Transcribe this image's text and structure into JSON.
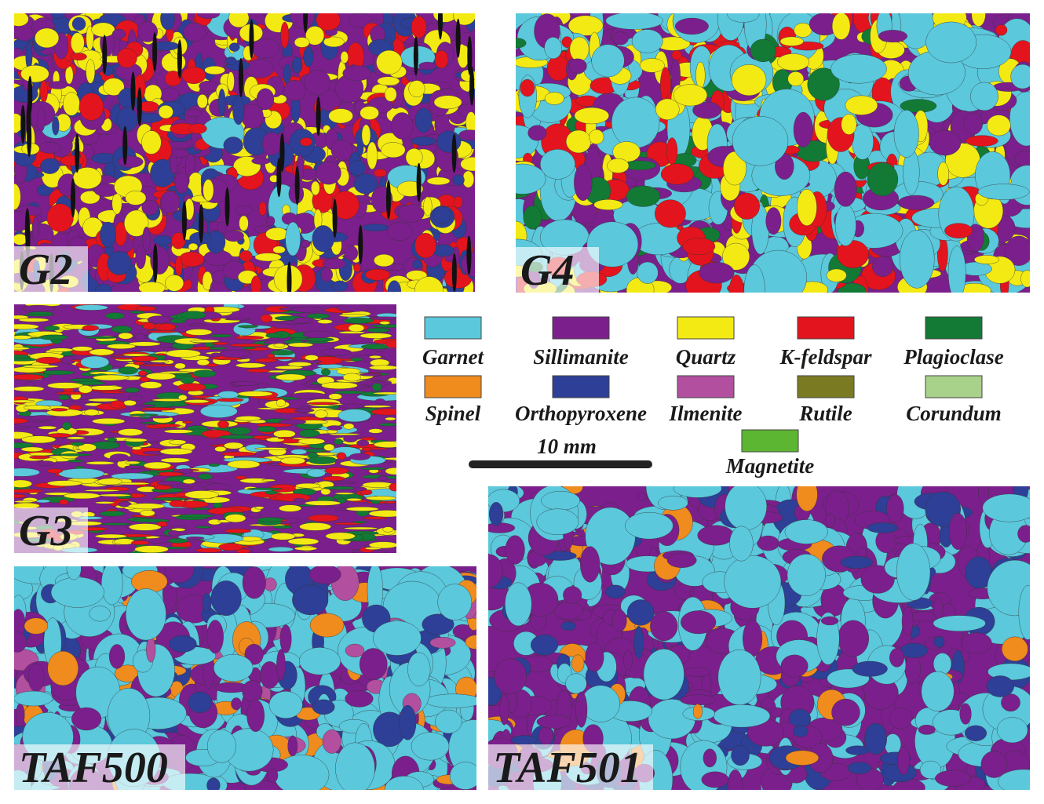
{
  "panels": [
    {
      "label": "G2"
    },
    {
      "label": "G4"
    },
    {
      "label": "G3"
    },
    {
      "label": "TAF500"
    },
    {
      "label": "TAF501"
    }
  ],
  "legend": [
    {
      "name": "Garnet",
      "color": "#5bc8dc"
    },
    {
      "name": "Sillimanite",
      "color": "#7b1f8c"
    },
    {
      "name": "Quartz",
      "color": "#f3ea14"
    },
    {
      "name": "K-feldspar",
      "color": "#e3141d"
    },
    {
      "name": "Plagioclase",
      "color": "#127a35"
    },
    {
      "name": "Spinel",
      "color": "#f08b1d"
    },
    {
      "name": "Orthopyroxene",
      "color": "#2d3f96"
    },
    {
      "name": "Ilmenite",
      "color": "#b24f9e"
    },
    {
      "name": "Rutile",
      "color": "#7a7a22"
    },
    {
      "name": "Corundum",
      "color": "#a8d189"
    },
    {
      "name": "Magnetite",
      "color": "#5db632"
    }
  ],
  "scale_bar": {
    "label": "10 mm"
  }
}
